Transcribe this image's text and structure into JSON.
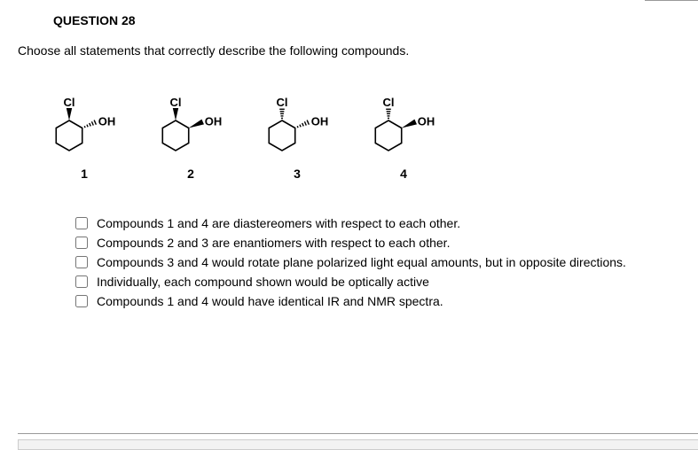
{
  "question_number": "QUESTION 28",
  "question_text": "Choose all statements that correctly describe the following compounds.",
  "compounds": [
    {
      "num": "1",
      "cl_label": "Cl",
      "oh_label": "OH",
      "cl_wedge": "solid",
      "oh_wedge": "dash"
    },
    {
      "num": "2",
      "cl_label": "Cl",
      "oh_label": "OH",
      "cl_wedge": "solid",
      "oh_wedge": "solid"
    },
    {
      "num": "3",
      "cl_label": "Cl",
      "oh_label": "OH",
      "cl_wedge": "dash",
      "oh_wedge": "dash"
    },
    {
      "num": "4",
      "cl_label": "Cl",
      "oh_label": "OH",
      "cl_wedge": "dash",
      "oh_wedge": "solid"
    }
  ],
  "options": [
    "Compounds 1 and 4 are diastereomers with respect to each other.",
    "Compounds 2 and 3 are enantiomers with respect to each other.",
    "Compounds 3 and 4 would rotate plane polarized light equal amounts, but in opposite directions.",
    "Individually, each compound shown would be optically active",
    "Compounds 1 and 4 would have identical IR and NMR spectra."
  ],
  "style": {
    "hexagon_stroke": "#000000",
    "hexagon_stroke_width": 1.6,
    "label_font_size": 13,
    "label_font_weight": "bold"
  }
}
